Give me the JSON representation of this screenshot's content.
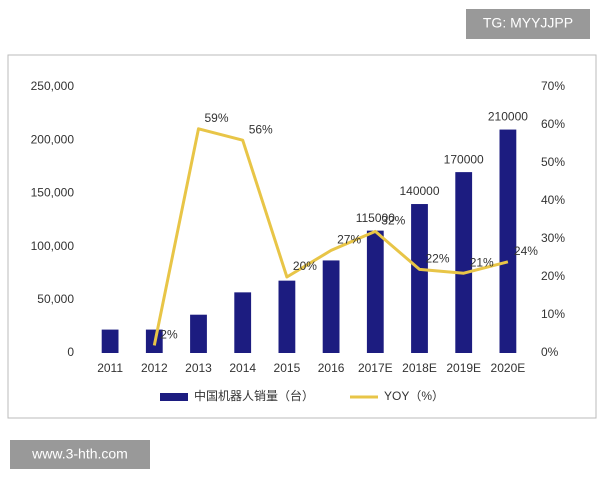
{
  "header_badge": "TG: MYYJJPP",
  "footer_badge": "www.3-hth.com",
  "chart_data": {
    "type": "bar",
    "categories": [
      "2011",
      "2012",
      "2013",
      "2014",
      "2015",
      "2016",
      "2017E",
      "2018E",
      "2019E",
      "2020E"
    ],
    "series": [
      {
        "name": "中国机器人销量（台）",
        "type": "bar",
        "color": "#1c1c80",
        "values": [
          22000,
          22000,
          36000,
          57000,
          68000,
          87000,
          115000,
          140000,
          170000,
          210000
        ],
        "value_labels": [
          null,
          null,
          null,
          null,
          null,
          null,
          "115000",
          "140000",
          "170000",
          "210000"
        ]
      },
      {
        "name": "YOY（%）",
        "type": "line",
        "axis": "y2",
        "color": "#e8c547",
        "values": [
          null,
          2,
          59,
          56,
          20,
          27,
          32,
          22,
          21,
          24
        ],
        "value_labels": [
          null,
          "2%",
          "59%",
          "56%",
          "20%",
          "27%",
          "32%",
          "22%",
          "21%",
          "24%"
        ]
      }
    ],
    "ylim": [
      0,
      250000
    ],
    "yticks": [
      0,
      {
        "value": 50000,
        "label": "50,000"
      },
      {
        "value": 100000,
        "label": "100,000"
      },
      {
        "value": 150000,
        "label": "150,000"
      },
      {
        "value": 200000,
        "label": "200,000"
      },
      {
        "value": 250000,
        "label": "250,000"
      }
    ],
    "y2lim": [
      0,
      70
    ],
    "y2ticks": [
      {
        "value": 0,
        "label": "0%"
      },
      {
        "value": 10,
        "label": "10%"
      },
      {
        "value": 20,
        "label": "20%"
      },
      {
        "value": 30,
        "label": "30%"
      },
      {
        "value": 40,
        "label": "40%"
      },
      {
        "value": 50,
        "label": "50%"
      },
      {
        "value": 60,
        "label": "60%"
      },
      {
        "value": 70,
        "label": "70%"
      }
    ],
    "grid": false,
    "legend": "bottom"
  }
}
